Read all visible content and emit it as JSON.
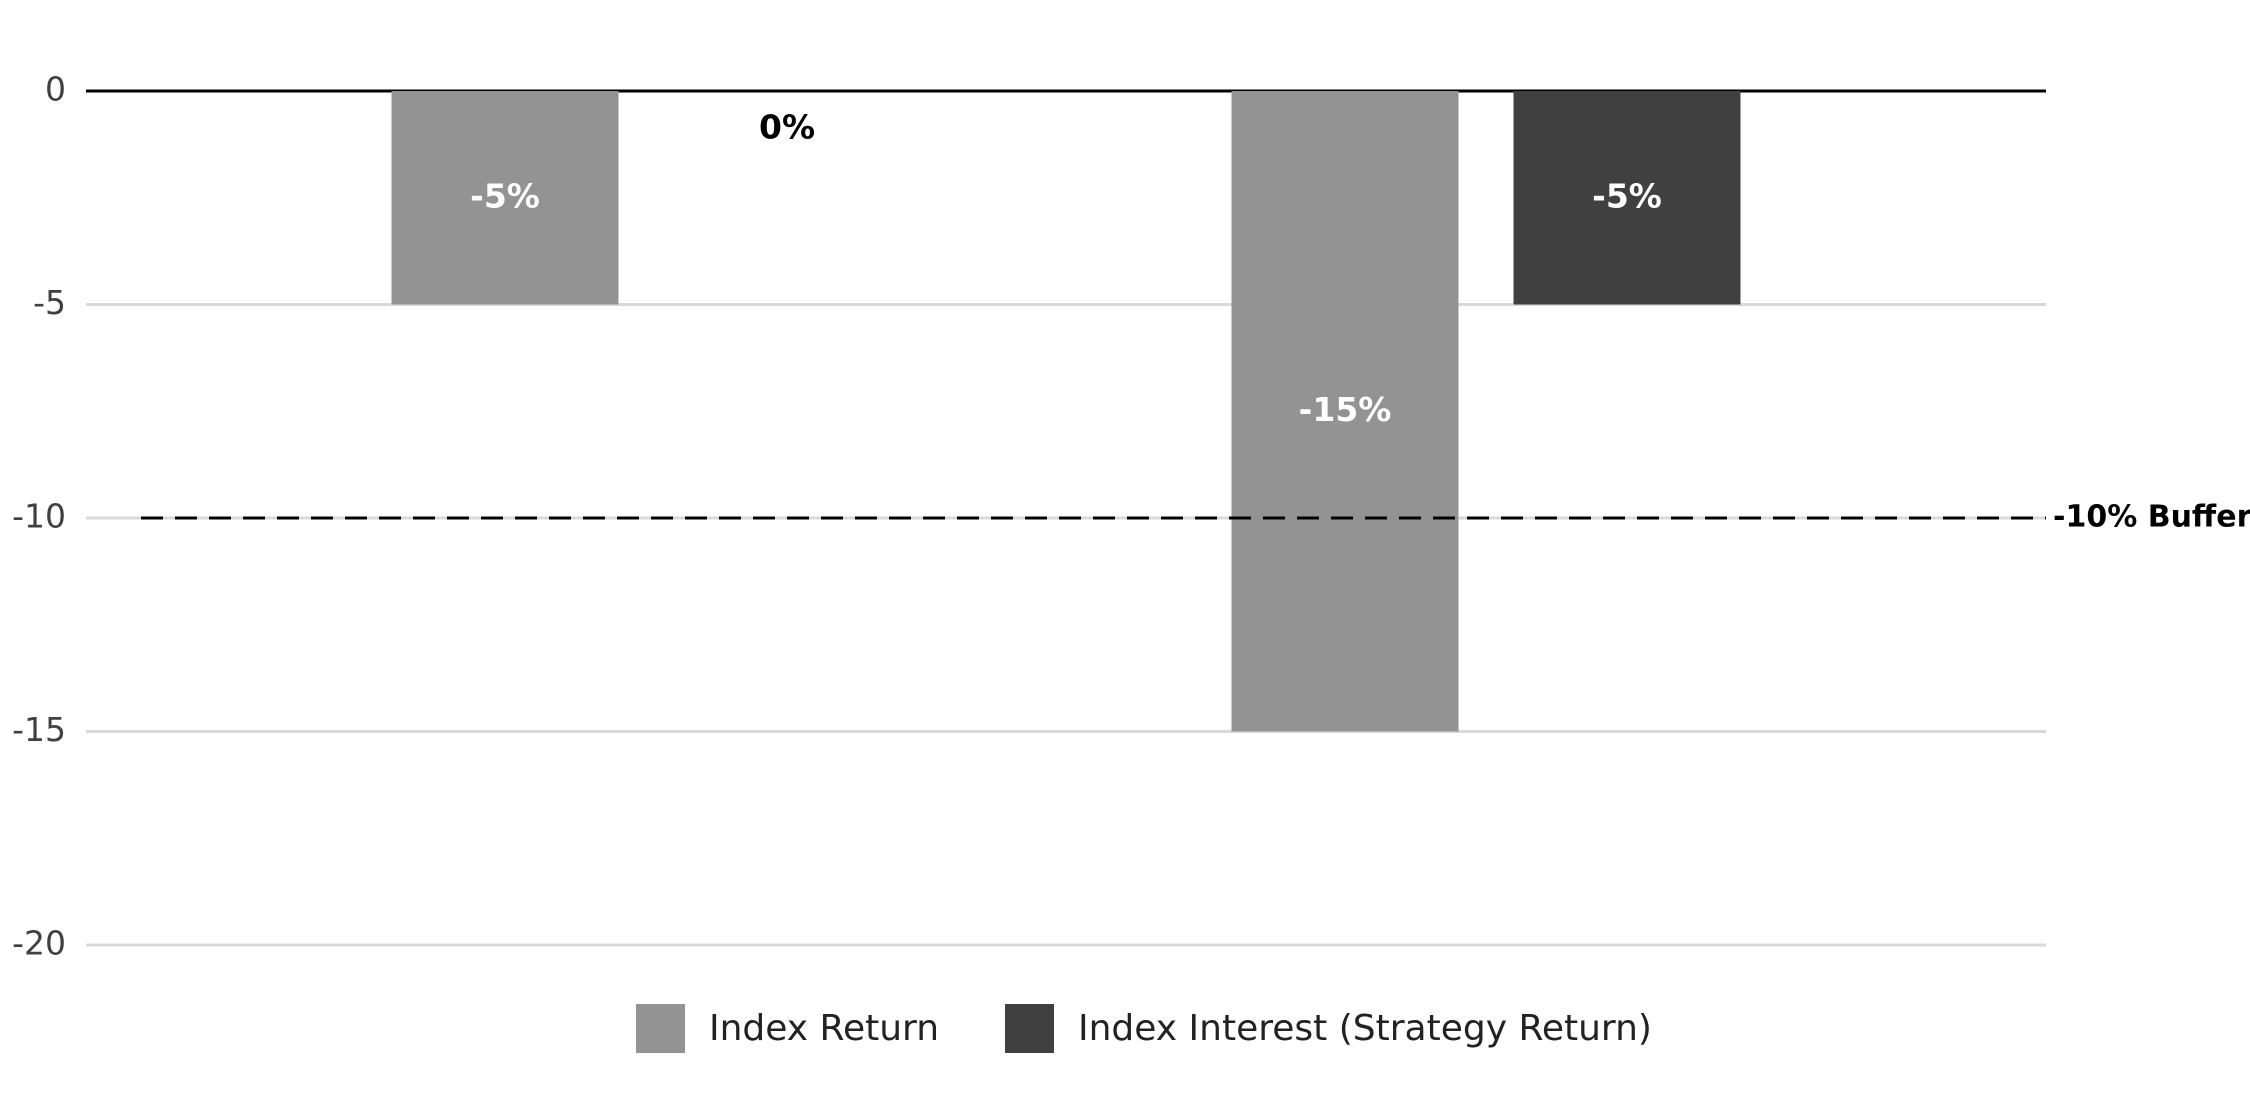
{
  "chart_data": {
    "type": "bar",
    "categories": [
      null,
      null
    ],
    "series": [
      {
        "name": "Index Return",
        "color": "#939393",
        "values": [
          -5,
          -15
        ],
        "value_labels": [
          "-5%",
          "-15%"
        ]
      },
      {
        "name": "Index Interest (Strategy Return)",
        "color": "#404040",
        "values": [
          0,
          -5
        ],
        "value_labels": [
          "0%",
          "-5%"
        ]
      }
    ],
    "ylim": [
      -20,
      0
    ],
    "yticks": [
      0,
      -5,
      -10,
      -15,
      -20
    ],
    "grid": true,
    "legend": "bottom",
    "reference_lines": [
      {
        "value": -10,
        "label": "-10% Buffer"
      }
    ]
  }
}
